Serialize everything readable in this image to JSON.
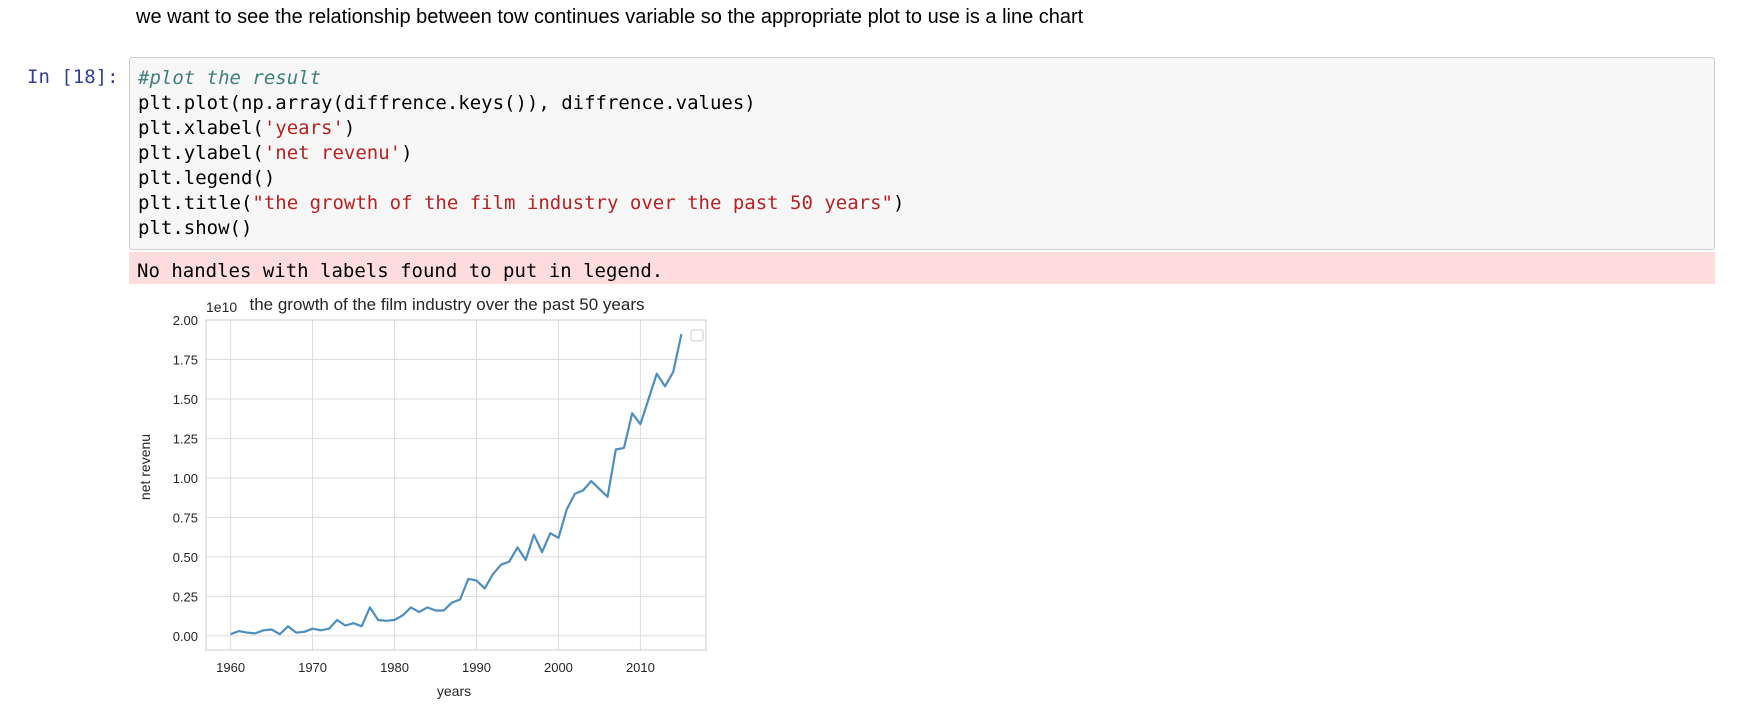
{
  "markdown": {
    "text": "we want to see the relationship between tow continues variable so the appropriate plot to use is a line chart"
  },
  "cell": {
    "prompt": "In [18]:",
    "code": {
      "line1": "#plot the result",
      "line2": "plt.plot(np.array(diffrence.keys()), diffrence.values)",
      "line3_pre": "plt.xlabel(",
      "line3_str": "'years'",
      "line3_post": ")",
      "line4_pre": "plt.ylabel(",
      "line4_str": "'net revenu'",
      "line4_post": ")",
      "line5": "plt.legend()",
      "line6_pre": "plt.title(",
      "line6_str": "\"the growth of the film industry over the past 50 years\"",
      "line6_post": ")",
      "line7": "plt.show()"
    },
    "stderr": "No handles with labels found to put in legend."
  },
  "colors": {
    "line": "#4c8fc0",
    "prompt": "#303f9f",
    "stderr_bg": "#ffdddd"
  },
  "chart_data": {
    "type": "line",
    "title": "the growth of the film industry over the past 50 years",
    "xlabel": "years",
    "ylabel": "net revenu",
    "offset_label": "1e10",
    "xlim": [
      1957,
      2018
    ],
    "ylim": [
      -0.09,
      2.0
    ],
    "x_ticks": [
      1960,
      1970,
      1980,
      1990,
      2000,
      2010
    ],
    "y_ticks": [
      "0.00",
      "0.25",
      "0.50",
      "0.75",
      "1.00",
      "1.25",
      "1.50",
      "1.75",
      "2.00"
    ],
    "y_tick_values": [
      0,
      0.25,
      0.5,
      0.75,
      1.0,
      1.25,
      1.5,
      1.75,
      2.0
    ],
    "grid": true,
    "legend": "top-right (empty)",
    "series": [
      {
        "x": [
          1960,
          1961,
          1962,
          1963,
          1964,
          1965,
          1966,
          1967,
          1968,
          1969,
          1970,
          1971,
          1972,
          1973,
          1974,
          1975,
          1976,
          1977,
          1978,
          1979,
          1980,
          1981,
          1982,
          1983,
          1984,
          1985,
          1986,
          1987,
          1988,
          1989,
          1990,
          1991,
          1992,
          1993,
          1994,
          1995,
          1996,
          1997,
          1998,
          1999,
          2000,
          2001,
          2002,
          2003,
          2004,
          2005,
          2006,
          2007,
          2008,
          2009,
          2010,
          2011,
          2012,
          2013,
          2014,
          2015
        ],
        "y": [
          0.01,
          0.03,
          0.02,
          0.015,
          0.035,
          0.04,
          0.01,
          0.06,
          0.02,
          0.025,
          0.045,
          0.035,
          0.045,
          0.1,
          0.065,
          0.08,
          0.06,
          0.18,
          0.1,
          0.095,
          0.1,
          0.13,
          0.18,
          0.15,
          0.18,
          0.16,
          0.16,
          0.21,
          0.23,
          0.36,
          0.35,
          0.3,
          0.39,
          0.45,
          0.47,
          0.56,
          0.48,
          0.64,
          0.53,
          0.65,
          0.62,
          0.8,
          0.9,
          0.92,
          0.98,
          0.93,
          0.88,
          1.18,
          1.19,
          1.41,
          1.34,
          1.5,
          1.66,
          1.58,
          1.67,
          1.91
        ]
      }
    ]
  }
}
